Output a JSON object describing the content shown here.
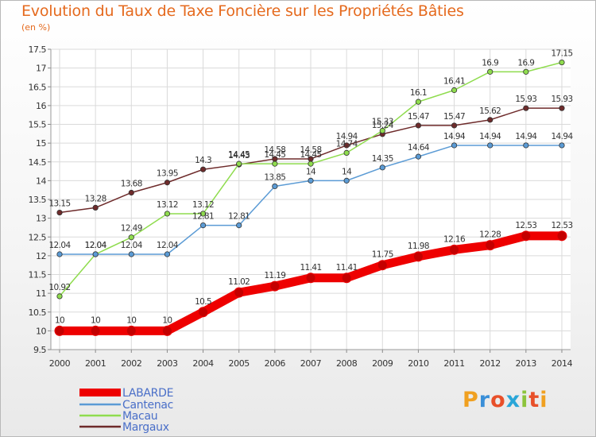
{
  "title": "Evolution du Taux de Taxe Foncière sur les Propriétés Bâties",
  "subtitle": "(en %)",
  "logo_text": "Proxiti",
  "chart_data": {
    "type": "line",
    "title": "Evolution du Taux de Taxe Foncière sur les Propriétés Bâties",
    "ylabel": "(en %)",
    "x": [
      "2000",
      "2001",
      "2002",
      "2003",
      "2004",
      "2005",
      "2006",
      "2007",
      "2008",
      "2009",
      "2010",
      "2011",
      "2012",
      "2013",
      "2014"
    ],
    "ylim": [
      9.5,
      17.5
    ],
    "yticks": [
      "9.5",
      "10",
      "10.5",
      "11",
      "11.5",
      "12",
      "12.5",
      "13",
      "13.5",
      "14",
      "14.5",
      "15",
      "15.5",
      "16",
      "16.5",
      "17",
      "17.5"
    ],
    "grid": true,
    "legend_position": "bottom-left",
    "series": [
      {
        "name": "LABARDE",
        "color": "#ee0000",
        "values": [
          10,
          10,
          10,
          10,
          10.5,
          11.02,
          11.19,
          11.41,
          11.41,
          11.75,
          11.98,
          12.16,
          12.28,
          12.53,
          12.53
        ],
        "labels": [
          "10",
          "10",
          "10",
          "10",
          "10.5",
          "11.02",
          "11.19",
          "11.41",
          "11.41",
          "11.75",
          "11.98",
          "12.16",
          "12.28",
          "12.53",
          "12.53"
        ]
      },
      {
        "name": "Cantenac",
        "color": "#5b9bd5",
        "values": [
          12.04,
          12.04,
          12.04,
          12.04,
          12.81,
          12.81,
          13.85,
          14,
          14,
          14.35,
          14.64,
          14.94,
          14.94,
          14.94,
          14.94
        ],
        "labels": [
          "12.04",
          "12.04",
          "12.04",
          "12.04",
          "12.81",
          "12.81",
          "13.85",
          "14",
          "14",
          "14.35",
          "14.64",
          "14.94",
          "14.94",
          "14.94",
          "14.94"
        ]
      },
      {
        "name": "Macau",
        "color": "#8fdc4e",
        "values": [
          10.92,
          12.04,
          12.49,
          13.12,
          13.12,
          14.45,
          14.45,
          14.45,
          14.74,
          15.33,
          16.1,
          16.41,
          16.9,
          16.9,
          17.15
        ],
        "labels": [
          "10.92",
          "12.04",
          "12.49",
          "13.12",
          "13.12",
          "14.45",
          "14.45",
          "14.45",
          "14.74",
          "15.33",
          "16.1",
          "16.41",
          "16.9",
          "16.9",
          "17.15"
        ]
      },
      {
        "name": "Margaux",
        "color": "#6e2b2b",
        "values": [
          13.15,
          13.28,
          13.68,
          13.95,
          14.3,
          14.43,
          14.58,
          14.58,
          14.94,
          15.24,
          15.47,
          15.47,
          15.62,
          15.93,
          15.93
        ],
        "labels": [
          "13.15",
          "13.28",
          "13.68",
          "13.95",
          "14.3",
          "14.43",
          "14.58",
          "14.58",
          "14.94",
          "15.24",
          "15.47",
          "15.47",
          "15.62",
          "15.93",
          "15.93"
        ]
      }
    ]
  }
}
